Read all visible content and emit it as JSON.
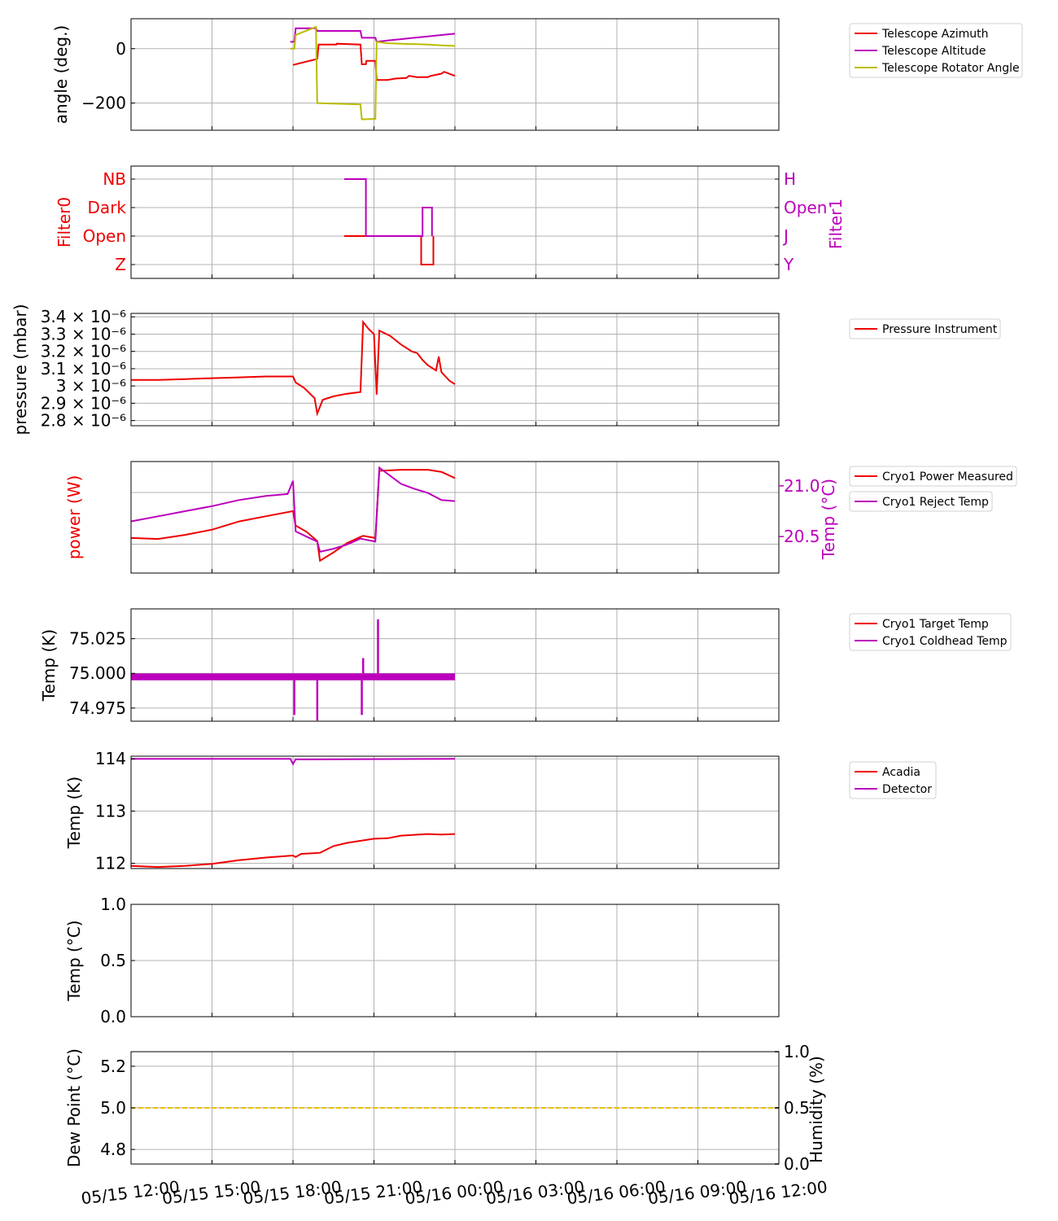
{
  "chart_data": [
    {
      "type": "line",
      "ylabel": "angle (deg.)",
      "ylim": [
        -300,
        110
      ],
      "yticks": [
        0,
        -200
      ],
      "ytick_labels": [
        "0",
        "−200"
      ],
      "grid": true,
      "legend_position": "right",
      "series": [
        {
          "name": "Telescope Azimuth",
          "color": "#ee0000",
          "points": [
            [
              18,
              -60
            ],
            [
              18.2,
              -55
            ],
            [
              18.6,
              -45
            ],
            [
              18.9,
              -38
            ],
            [
              18.95,
              15
            ],
            [
              19.6,
              15
            ],
            [
              19.62,
              18
            ],
            [
              20.5,
              15
            ],
            [
              20.55,
              -58
            ],
            [
              20.7,
              -57
            ],
            [
              20.72,
              -45
            ],
            [
              21.05,
              -45
            ],
            [
              21.1,
              -115
            ],
            [
              21.5,
              -115
            ],
            [
              21.8,
              -110
            ],
            [
              22.2,
              -108
            ],
            [
              22.3,
              -100
            ],
            [
              22.6,
              -105
            ],
            [
              23,
              -105
            ],
            [
              23.1,
              -100
            ],
            [
              23.5,
              -92
            ],
            [
              23.6,
              -85
            ],
            [
              24,
              -100
            ]
          ]
        },
        {
          "name": "Telescope Altitude",
          "color": "#bb00bb",
          "points": [
            [
              17.9,
              25
            ],
            [
              18.05,
              25
            ],
            [
              18.1,
              75
            ],
            [
              18.85,
              75
            ],
            [
              18.9,
              65
            ],
            [
              20.5,
              65
            ],
            [
              20.55,
              40
            ],
            [
              21.05,
              40
            ],
            [
              21.1,
              25
            ],
            [
              21.5,
              30
            ],
            [
              22,
              35
            ],
            [
              22.5,
              40
            ],
            [
              23,
              45
            ],
            [
              23.5,
              50
            ],
            [
              24,
              55
            ]
          ]
        },
        {
          "name": "Telescope Rotator Angle",
          "color": "#bbbb00",
          "points": [
            [
              17.9,
              0
            ],
            [
              18.05,
              0
            ],
            [
              18.1,
              50
            ],
            [
              18.85,
              80
            ],
            [
              18.9,
              -200
            ],
            [
              20.5,
              -205
            ],
            [
              20.55,
              -260
            ],
            [
              21.05,
              -258
            ],
            [
              21.1,
              25
            ],
            [
              21.5,
              20
            ],
            [
              22,
              18
            ],
            [
              23,
              15
            ],
            [
              23.5,
              12
            ],
            [
              24,
              10
            ]
          ]
        }
      ]
    },
    {
      "type": "line",
      "ylabel": "Filter0",
      "ylabel_right": "Filter1",
      "left_tick_labels": [
        "NB",
        "Dark",
        "Open",
        "Z"
      ],
      "right_tick_labels": [
        "H",
        "Open",
        "J",
        "Y"
      ],
      "grid": true,
      "series": [
        {
          "name": "Filter0",
          "color": "#ee0000",
          "points": [
            [
              19.9,
              2
            ],
            [
              22.75,
              2
            ],
            [
              22.75,
              3
            ],
            [
              23.2,
              3
            ],
            [
              23.2,
              2
            ]
          ]
        },
        {
          "name": "Filter1",
          "color": "#bb00bb",
          "points": [
            [
              19.9,
              0
            ],
            [
              20.7,
              0
            ],
            [
              20.7,
              2
            ],
            [
              22.8,
              2
            ],
            [
              22.8,
              1
            ],
            [
              23.15,
              1
            ],
            [
              23.15,
              2
            ]
          ]
        }
      ]
    },
    {
      "type": "line",
      "ylabel": "pressure (mbar)",
      "ylim": [
        2.77e-06,
        3.42e-06
      ],
      "ytick_labels": [
        "3.4 × 10⁻⁶",
        "3.3 × 10⁻⁶",
        "3.2 × 10⁻⁶",
        "3.1 × 10⁻⁶",
        "3 × 10⁻⁶",
        "2.9 × 10⁻⁶",
        "2.8 × 10⁻⁶"
      ],
      "yticks": [
        3.4e-06,
        3.3e-06,
        3.2e-06,
        3.1e-06,
        3e-06,
        2.9e-06,
        2.8e-06
      ],
      "grid": true,
      "legend_position": "right",
      "series": [
        {
          "name": "Pressure Instrument",
          "color": "#ee0000",
          "points": [
            [
              12,
              3.035e-06
            ],
            [
              13,
              3.035e-06
            ],
            [
              14,
              3.04e-06
            ],
            [
              15,
              3.045e-06
            ],
            [
              16,
              3.05e-06
            ],
            [
              17,
              3.055e-06
            ],
            [
              18,
              3.055e-06
            ],
            [
              18.1,
              3.02e-06
            ],
            [
              18.4,
              2.99e-06
            ],
            [
              18.8,
              2.93e-06
            ],
            [
              18.9,
              2.84e-06
            ],
            [
              19.1,
              2.92e-06
            ],
            [
              19.5,
              2.94e-06
            ],
            [
              20,
              2.955e-06
            ],
            [
              20.5,
              2.965e-06
            ],
            [
              20.6,
              3.37e-06
            ],
            [
              20.8,
              3.33e-06
            ],
            [
              21,
              3.3e-06
            ],
            [
              21.1,
              2.95e-06
            ],
            [
              21.2,
              3.32e-06
            ],
            [
              21.6,
              3.29e-06
            ],
            [
              22,
              3.24e-06
            ],
            [
              22.4,
              3.2e-06
            ],
            [
              22.6,
              3.19e-06
            ],
            [
              22.8,
              3.15e-06
            ],
            [
              23,
              3.12e-06
            ],
            [
              23.3,
              3.09e-06
            ],
            [
              23.4,
              3.17e-06
            ],
            [
              23.5,
              3.08e-06
            ],
            [
              23.8,
              3.03e-06
            ],
            [
              24,
              3.01e-06
            ]
          ]
        }
      ]
    },
    {
      "type": "line",
      "ylabel": "power (W)",
      "ylabel_right": "Temp (°C)",
      "ylim": [
        227.2,
        238
      ],
      "yticks": [
        235,
        230
      ],
      "ylim_right": [
        20.14,
        21.24
      ],
      "yticks_right": [
        21.0,
        20.5
      ],
      "ytick_labels_right": [
        "21.0",
        "20.5"
      ],
      "grid": true,
      "legend_position": "right",
      "series": [
        {
          "name": "Cryo1 Power Measured",
          "color": "#ee0000",
          "axis": "left",
          "points": [
            [
              12,
              230.6
            ],
            [
              13,
              230.5
            ],
            [
              14,
              230.9
            ],
            [
              15,
              231.4
            ],
            [
              16,
              232.2
            ],
            [
              17,
              232.7
            ],
            [
              18,
              233.2
            ],
            [
              18.1,
              231.8
            ],
            [
              18.5,
              231.2
            ],
            [
              18.9,
              230.3
            ],
            [
              19,
              228.4
            ],
            [
              19.5,
              229.2
            ],
            [
              20,
              230.1
            ],
            [
              20.5,
              230.7
            ],
            [
              20.6,
              230.8
            ],
            [
              21.05,
              230.6
            ],
            [
              21.2,
              237.1
            ],
            [
              22,
              237.2
            ],
            [
              23,
              237.2
            ],
            [
              23.5,
              237
            ],
            [
              24,
              236.4
            ]
          ]
        },
        {
          "name": "Cryo1 Reject Temp",
          "color": "#bb00bb",
          "axis": "right",
          "points": [
            [
              12,
              20.65
            ],
            [
              13,
              20.7
            ],
            [
              14,
              20.75
            ],
            [
              15,
              20.8
            ],
            [
              16,
              20.86
            ],
            [
              17,
              20.9
            ],
            [
              17.8,
              20.92
            ],
            [
              18,
              21.05
            ],
            [
              18.1,
              20.55
            ],
            [
              18.5,
              20.5
            ],
            [
              18.9,
              20.45
            ],
            [
              19,
              20.35
            ],
            [
              19.5,
              20.38
            ],
            [
              20,
              20.42
            ],
            [
              20.5,
              20.48
            ],
            [
              21.05,
              20.45
            ],
            [
              21.2,
              21.18
            ],
            [
              21.6,
              21.1
            ],
            [
              22,
              21.02
            ],
            [
              22.5,
              20.97
            ],
            [
              23,
              20.93
            ],
            [
              23.5,
              20.86
            ],
            [
              24,
              20.85
            ]
          ]
        }
      ]
    },
    {
      "type": "line",
      "ylabel": "Temp (K)",
      "ylim": [
        74.9655,
        75.0465
      ],
      "yticks": [
        75.025,
        75.0,
        74.975
      ],
      "ytick_labels": [
        "75.025",
        "75.000",
        "74.975"
      ],
      "grid": true,
      "legend_position": "right",
      "series": [
        {
          "name": "Cryo1 Target Temp",
          "color": "#ee0000",
          "points": []
        },
        {
          "name": "Cryo1 Coldhead Temp",
          "color": "#bb00bb",
          "band": [
            74.995,
            75.0
          ],
          "x_range": [
            12,
            24
          ],
          "spikes": [
            [
              18.05,
              74.97
            ],
            [
              18.9,
              74.966
            ],
            [
              20.55,
              74.97
            ],
            [
              20.6,
              75.011
            ],
            [
              21.15,
              75.039
            ]
          ]
        }
      ]
    },
    {
      "type": "line",
      "ylabel": "Temp (K)",
      "ylim": [
        111.9,
        114.05
      ],
      "yticks": [
        114,
        113,
        112
      ],
      "ytick_labels": [
        "114",
        "113",
        "112"
      ],
      "grid": true,
      "legend_position": "right",
      "series": [
        {
          "name": "Acadia",
          "color": "#ee0000",
          "points": [
            [
              12,
              111.95
            ],
            [
              13,
              111.93
            ],
            [
              14,
              111.95
            ],
            [
              15,
              111.99
            ],
            [
              16,
              112.06
            ],
            [
              17,
              112.11
            ],
            [
              18,
              112.15
            ],
            [
              18.1,
              112.12
            ],
            [
              18.3,
              112.18
            ],
            [
              19,
              112.2
            ],
            [
              19.5,
              112.33
            ],
            [
              20,
              112.39
            ],
            [
              21,
              112.47
            ],
            [
              21.5,
              112.48
            ],
            [
              22,
              112.53
            ],
            [
              23,
              112.56
            ],
            [
              23.5,
              112.55
            ],
            [
              24,
              112.56
            ]
          ]
        },
        {
          "name": "Detector",
          "color": "#bb00bb",
          "points": [
            [
              12,
              114.0
            ],
            [
              17.9,
              114.0
            ],
            [
              18.0,
              113.9
            ],
            [
              18.1,
              113.99
            ],
            [
              24,
              114.0
            ]
          ]
        }
      ]
    },
    {
      "type": "line",
      "ylabel": "Temp (°C)",
      "ylim": [
        0.0,
        1.0
      ],
      "yticks": [
        1.0,
        0.5,
        0.0
      ],
      "ytick_labels": [
        "1.0",
        "0.5",
        "0.0"
      ],
      "grid": true,
      "series": []
    },
    {
      "type": "line",
      "ylabel": "Dew Point (°C)",
      "ylabel_right": "Humidity (%)",
      "ylim": [
        4.73,
        5.27
      ],
      "yticks": [
        5.2,
        5.0,
        4.8
      ],
      "ytick_labels": [
        "5.2",
        "5.0",
        "4.8"
      ],
      "ylim_right": [
        0.0,
        1.0
      ],
      "yticks_right": [
        1.0,
        0.5,
        0.0
      ],
      "ytick_labels_right": [
        "1.0",
        "0.5",
        "0.0"
      ],
      "grid": true,
      "series": [
        {
          "color": "#e8c000",
          "style": "dashed",
          "points": [
            [
              12,
              5.0
            ],
            [
              36,
              5.0
            ]
          ]
        }
      ]
    }
  ],
  "x_axis": {
    "xlim_hours": [
      12,
      36
    ],
    "tick_hours": [
      12,
      15,
      18,
      21,
      24,
      27,
      30,
      33,
      36
    ],
    "tick_labels": [
      "05/15 12:00",
      "05/15 15:00",
      "05/15 18:00",
      "05/15 21:00",
      "05/16 00:00",
      "05/16 03:00",
      "05/16 06:00",
      "05/16 09:00",
      "05/16 12:00"
    ]
  },
  "colors": {
    "red": "#ee0000",
    "magenta": "#bb00bb",
    "olive": "#bbbb00",
    "grid": "#b0b0b0"
  }
}
